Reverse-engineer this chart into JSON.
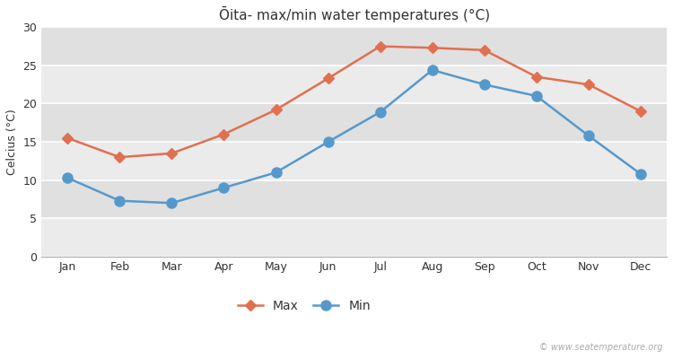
{
  "title": "Ōita- max/min water temperatures (°C)",
  "ylabel": "Celcius (°C)",
  "months": [
    "Jan",
    "Feb",
    "Mar",
    "Apr",
    "May",
    "Jun",
    "Jul",
    "Aug",
    "Sep",
    "Oct",
    "Nov",
    "Dec"
  ],
  "max_values": [
    15.5,
    13.0,
    13.5,
    16.0,
    19.2,
    23.3,
    27.5,
    27.3,
    27.0,
    23.5,
    22.5,
    19.0
  ],
  "min_values": [
    10.3,
    7.3,
    7.0,
    9.0,
    11.0,
    15.0,
    18.9,
    24.4,
    22.5,
    21.0,
    15.8,
    10.8
  ],
  "max_color": "#E07050",
  "min_color": "#5599CC",
  "figure_bg": "#ffffff",
  "plot_bg_light": "#EBEBEB",
  "plot_bg_dark": "#E0E0E0",
  "grid_color": "#ffffff",
  "ylim": [
    0,
    30
  ],
  "yticks": [
    0,
    5,
    10,
    15,
    20,
    25,
    30
  ],
  "legend_labels": [
    "Max",
    "Min"
  ],
  "max_marker": "D",
  "min_marker": "o",
  "max_marker_size": 6,
  "min_marker_size": 8,
  "line_width": 1.8,
  "watermark": "© www.seatemperature.org",
  "title_fontsize": 11,
  "axis_label_fontsize": 9,
  "tick_fontsize": 9,
  "legend_fontsize": 10
}
